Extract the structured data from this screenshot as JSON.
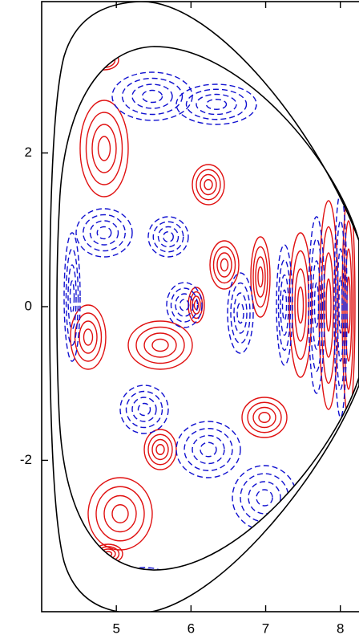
{
  "chart_data": {
    "type": "contour",
    "xlim": [
      4.0,
      8.25
    ],
    "ylim": [
      -3.97,
      3.97
    ],
    "xticks": [
      5,
      6,
      7,
      8
    ],
    "yticks": [
      -2,
      0,
      2
    ],
    "positive_color": "#e01010",
    "negative_color": "#1010d0"
  }
}
